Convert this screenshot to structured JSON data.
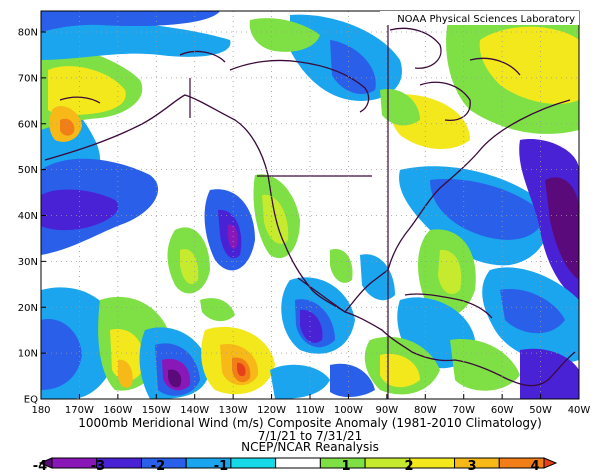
{
  "credit": "NOAA Physical Sciences Laboratory",
  "title": "1000mb Meridional Wind (m/s) Composite Anomaly (1981-2010 Climatology)",
  "subtitle": "7/1/21 to 7/31/21",
  "source": "NCEP/NCAR Reanalysis",
  "lat_labels": [
    "80N",
    "70N",
    "60N",
    "50N",
    "40N",
    "30N",
    "20N",
    "10N",
    "EQ"
  ],
  "lon_labels": [
    "180",
    "170W",
    "160W",
    "150W",
    "140W",
    "130W",
    "120W",
    "110W",
    "100W",
    "90W",
    "80W",
    "70W",
    "60W",
    "50W",
    "40W"
  ],
  "colorbar": {
    "ticks": [
      "-4",
      "-3",
      "-2",
      "-1",
      "1",
      "2",
      "3",
      "4"
    ],
    "colors": [
      "#5a0a7a",
      "#8a18b8",
      "#4a22d6",
      "#2a5fea",
      "#1aa5ee",
      "#16d8e6",
      "#ffffff",
      "#7ee044",
      "#c6ea2e",
      "#f3e81c",
      "#f6b918",
      "#f17e16",
      "#e6401a"
    ]
  },
  "colors": {
    "coast": "#3a0a3a",
    "border": "#3a0a3a",
    "grid": "#9a9a9a",
    "frame": "#000000"
  }
}
